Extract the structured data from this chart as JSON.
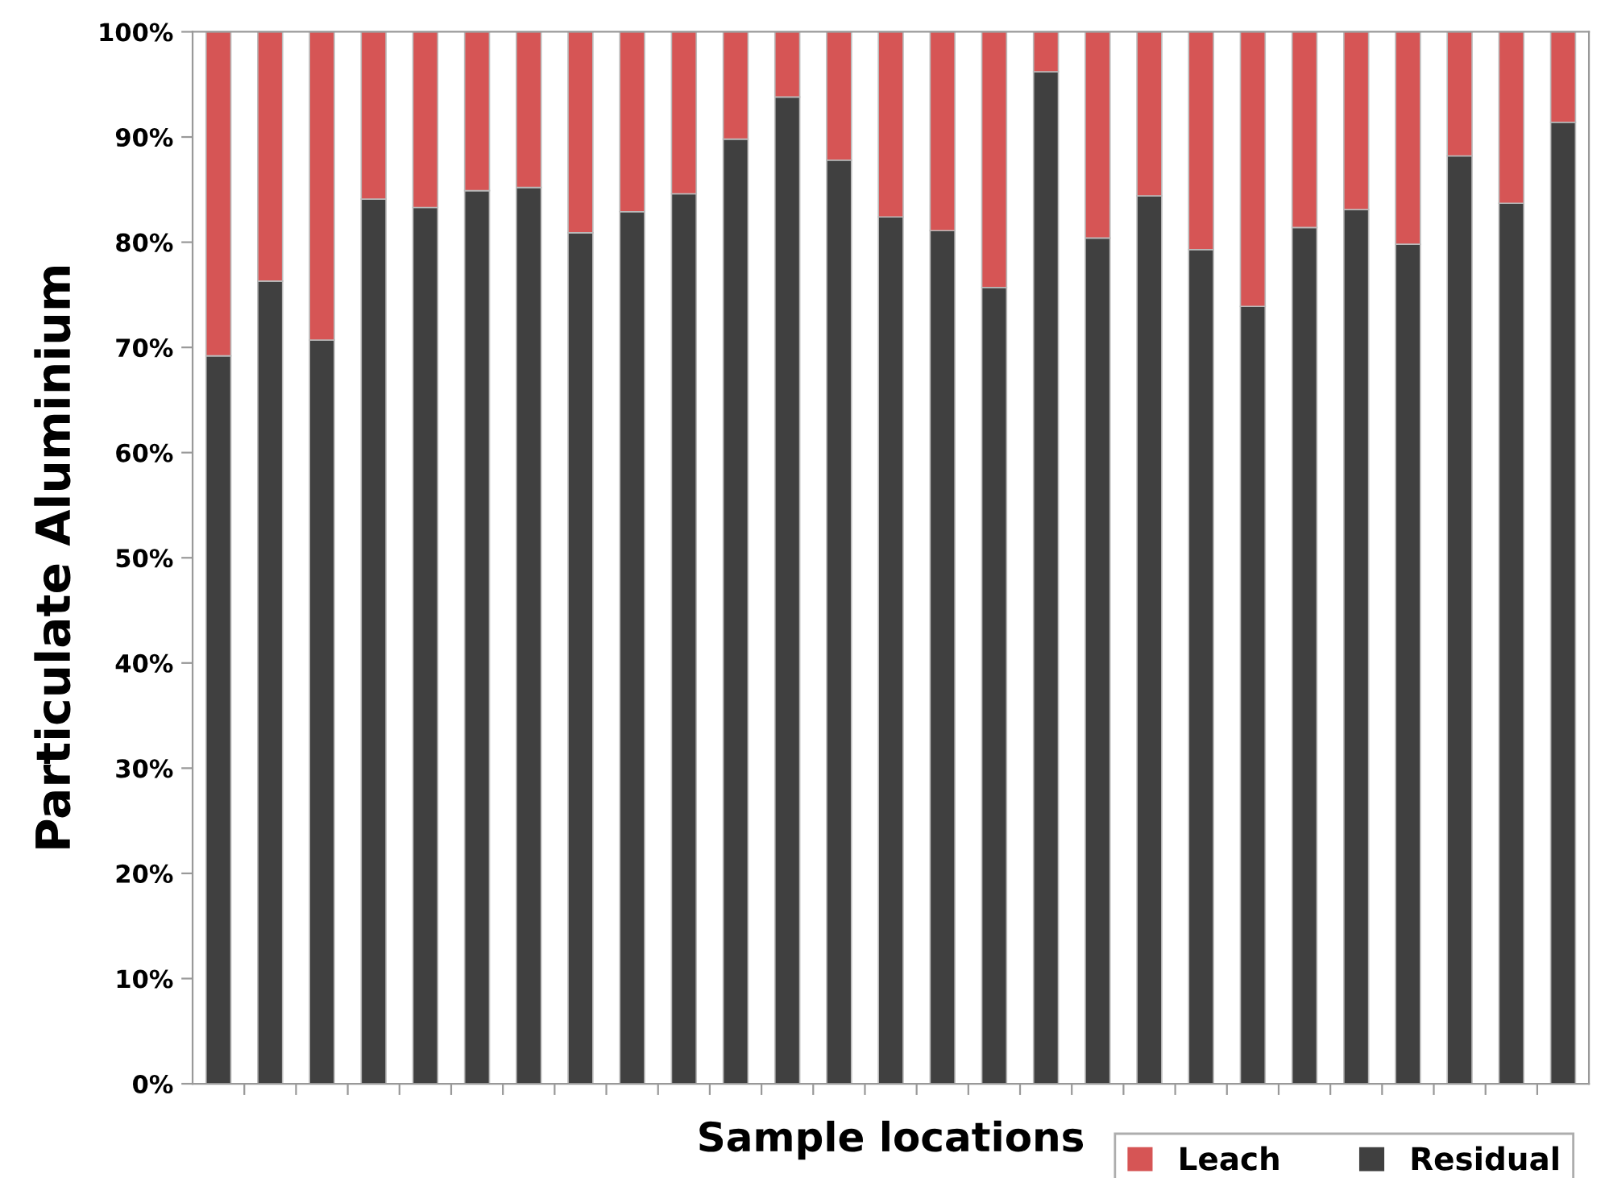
{
  "chart_data": {
    "type": "bar",
    "stacked": true,
    "xlabel": "Sample locations",
    "ylabel": "Particulate Aluminium",
    "categories": [
      null,
      null,
      null,
      null,
      null,
      null,
      null,
      null,
      null,
      null,
      null,
      null,
      null,
      null,
      null,
      null,
      null,
      null,
      null,
      null,
      null,
      null,
      null,
      null,
      null,
      null,
      null
    ],
    "series": [
      {
        "name": "Residual",
        "color": "#404040",
        "values": [
          69.2,
          76.3,
          70.7,
          84.1,
          83.3,
          84.9,
          85.2,
          80.9,
          82.9,
          84.6,
          89.8,
          93.8,
          87.8,
          82.4,
          81.1,
          75.7,
          96.2,
          80.4,
          84.4,
          79.3,
          73.9,
          81.4,
          83.1,
          79.8,
          88.2,
          83.7,
          91.4
        ]
      },
      {
        "name": "Leach",
        "color": "#d65555",
        "values": [
          30.8,
          23.7,
          29.3,
          15.9,
          16.7,
          15.1,
          14.8,
          19.1,
          17.1,
          15.4,
          10.2,
          6.2,
          12.2,
          17.6,
          18.9,
          24.3,
          3.8,
          19.6,
          15.6,
          20.7,
          26.1,
          18.6,
          16.9,
          20.2,
          11.8,
          16.3,
          8.6
        ]
      }
    ],
    "ylim": [
      0,
      100
    ],
    "yticks": [
      {
        "value": 0,
        "label": "0%"
      },
      {
        "value": 10,
        "label": "10%"
      },
      {
        "value": 20,
        "label": "20%"
      },
      {
        "value": 30,
        "label": "30%"
      },
      {
        "value": 40,
        "label": "40%"
      },
      {
        "value": 50,
        "label": "50%"
      },
      {
        "value": 60,
        "label": "60%"
      },
      {
        "value": 70,
        "label": "70%"
      },
      {
        "value": 80,
        "label": "80%"
      },
      {
        "value": 90,
        "label": "90%"
      },
      {
        "value": 100,
        "label": "100%"
      }
    ],
    "legend": "bottom right",
    "grid": false
  }
}
